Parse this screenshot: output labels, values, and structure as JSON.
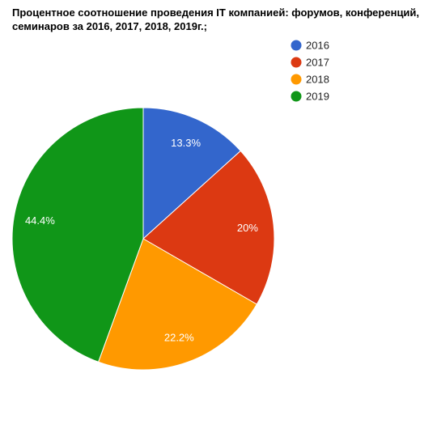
{
  "chart_data": {
    "type": "pie",
    "title": "Процентное соотношение проведения IT компанией: форумов, конференций, семинаров за 2016, 2017, 2018, 2019г.;",
    "categories": [
      "2016",
      "2017",
      "2018",
      "2019"
    ],
    "values": [
      13.3,
      20,
      22.2,
      44.4
    ],
    "data_labels": [
      "13.3%",
      "20%",
      "22.2%",
      "44.4%"
    ],
    "colors": [
      "#3366cc",
      "#dc3912",
      "#ff9900",
      "#109618"
    ],
    "legend_position": "top-right"
  }
}
